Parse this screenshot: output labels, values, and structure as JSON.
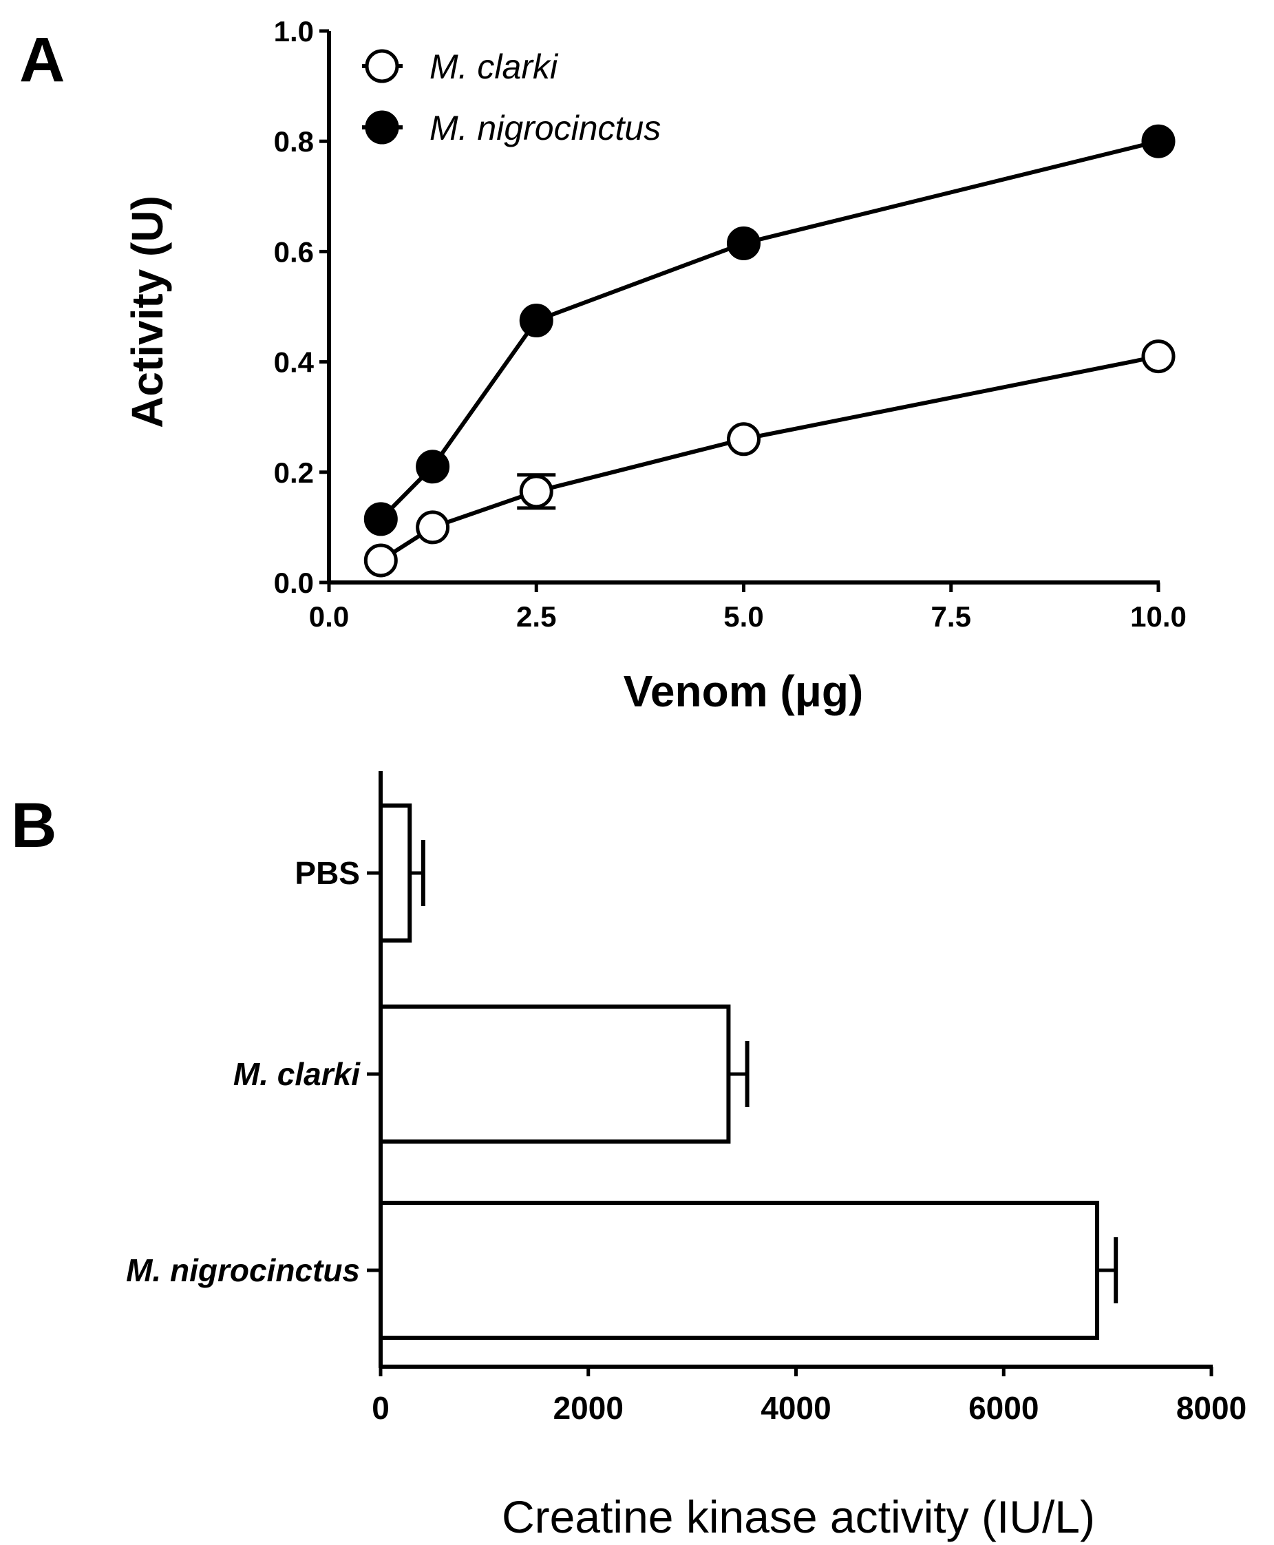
{
  "chart_data": [
    {
      "panel": "A",
      "type": "line",
      "xlabel": "Venom (μg)",
      "ylabel": "Activity (U)",
      "x_ticks": [
        "0.0",
        "2.5",
        "5.0",
        "7.5",
        "10.0"
      ],
      "y_ticks": [
        "0.0",
        "0.2",
        "0.4",
        "0.6",
        "0.8",
        "1.0"
      ],
      "xlim": [
        0,
        10
      ],
      "ylim": [
        0,
        1.0
      ],
      "legend_position": "top-left",
      "x": [
        0.625,
        1.25,
        2.5,
        5.0,
        10.0
      ],
      "series": [
        {
          "name": "M. clarki",
          "marker": "open-circle",
          "values": [
            0.04,
            0.1,
            0.165,
            0.26,
            0.41
          ],
          "errors": [
            0,
            0,
            0.03,
            0,
            0
          ]
        },
        {
          "name": "M. nigrocinctus",
          "marker": "filled-circle",
          "values": [
            0.115,
            0.21,
            0.475,
            0.615,
            0.8
          ],
          "errors": [
            0,
            0,
            0,
            0,
            0
          ]
        }
      ]
    },
    {
      "panel": "B",
      "type": "bar",
      "orientation": "horizontal",
      "xlabel": "Creatine kinase activity (IU/L)",
      "ylabel": "",
      "x_ticks": [
        "0",
        "2000",
        "4000",
        "6000",
        "8000"
      ],
      "xlim": [
        0,
        8000
      ],
      "categories": [
        "PBS",
        "M. clarki",
        "M. nigrocinctus"
      ],
      "category_italic": [
        false,
        true,
        true
      ],
      "values": [
        280,
        3350,
        6900
      ],
      "errors": [
        0,
        180,
        180
      ]
    }
  ]
}
